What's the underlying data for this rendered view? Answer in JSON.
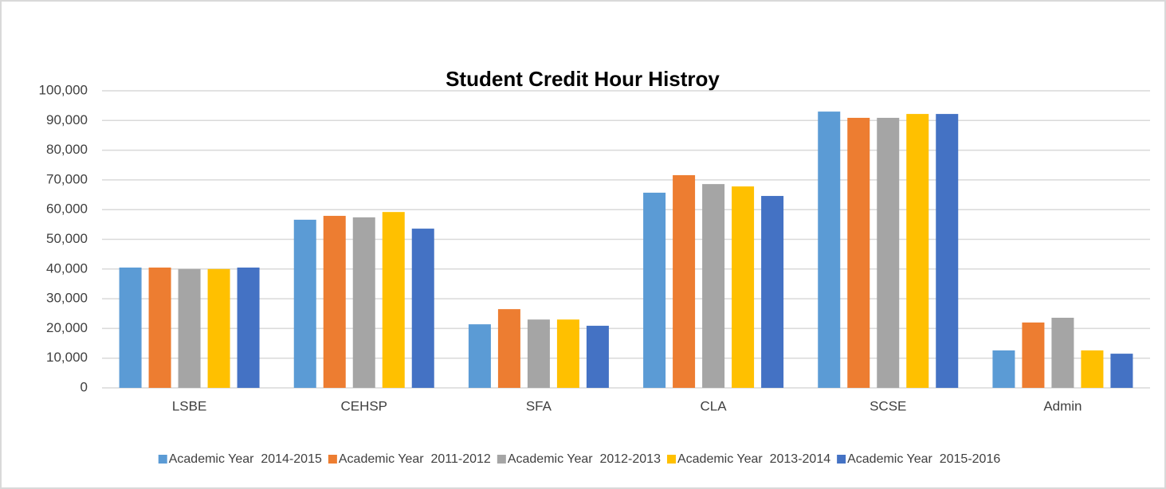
{
  "chart_data": {
    "type": "bar",
    "title": "Student Credit Hour Histroy",
    "categories": [
      "LSBE",
      "CEHSP",
      "SFA",
      "CLA",
      "SCSE",
      "Admin"
    ],
    "series": [
      {
        "name": "Academic Year  2014-2015",
        "color": "#5b9bd5",
        "values": [
          40500,
          56600,
          21400,
          65700,
          93000,
          12600
        ]
      },
      {
        "name": "Academic Year  2011-2012",
        "color": "#ed7d31",
        "values": [
          40500,
          57900,
          26500,
          71600,
          90900,
          22000
        ]
      },
      {
        "name": "Academic Year  2012-2013",
        "color": "#a5a5a5",
        "values": [
          40000,
          57400,
          23000,
          68600,
          90900,
          23600
        ]
      },
      {
        "name": "Academic Year  2013-2014",
        "color": "#ffc000",
        "values": [
          40000,
          59200,
          23000,
          67800,
          92200,
          12600
        ]
      },
      {
        "name": "Academic Year  2015-2016",
        "color": "#4472c4",
        "values": [
          40500,
          53600,
          20900,
          64600,
          92200,
          11500
        ]
      }
    ],
    "ylim": [
      0,
      100000
    ],
    "yticks": [
      0,
      {
        "value": 10000,
        "label": "10,000"
      },
      {
        "value": 20000,
        "label": "20,000"
      },
      {
        "value": 30000,
        "label": "30,000"
      },
      {
        "value": 40000,
        "label": "40,000"
      },
      {
        "value": 50000,
        "label": "50,000"
      },
      {
        "value": 60000,
        "label": "60,000"
      },
      {
        "value": 70000,
        "label": "70,000"
      },
      {
        "value": 80000,
        "label": "80,000"
      },
      {
        "value": 90000,
        "label": "90,000"
      },
      {
        "value": 100000,
        "label": "100,000"
      }
    ],
    "grid": true,
    "legend": "bottom"
  }
}
